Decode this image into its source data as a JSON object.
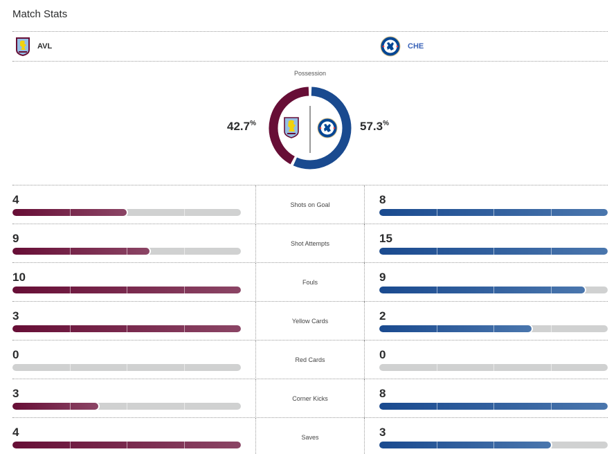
{
  "title": "Match Stats",
  "teams": {
    "home": {
      "abbr": "AVL",
      "color": "#670e36",
      "logo": "aston-villa-crest"
    },
    "away": {
      "abbr": "CHE",
      "color": "#1a4a8f",
      "logo": "chelsea-crest"
    }
  },
  "possession": {
    "label": "Possession",
    "home_pct": 42.7,
    "away_pct": 57.3,
    "home_display": "42.7",
    "away_display": "57.3",
    "unit": "%"
  },
  "stats": [
    {
      "label": "Shots on Goal",
      "home": 4,
      "away": 8
    },
    {
      "label": "Shot Attempts",
      "home": 9,
      "away": 15
    },
    {
      "label": "Fouls",
      "home": 10,
      "away": 9
    },
    {
      "label": "Yellow Cards",
      "home": 3,
      "away": 2
    },
    {
      "label": "Red Cards",
      "home": 0,
      "away": 0
    },
    {
      "label": "Corner Kicks",
      "home": 3,
      "away": 8
    },
    {
      "label": "Saves",
      "home": 4,
      "away": 3
    }
  ]
}
